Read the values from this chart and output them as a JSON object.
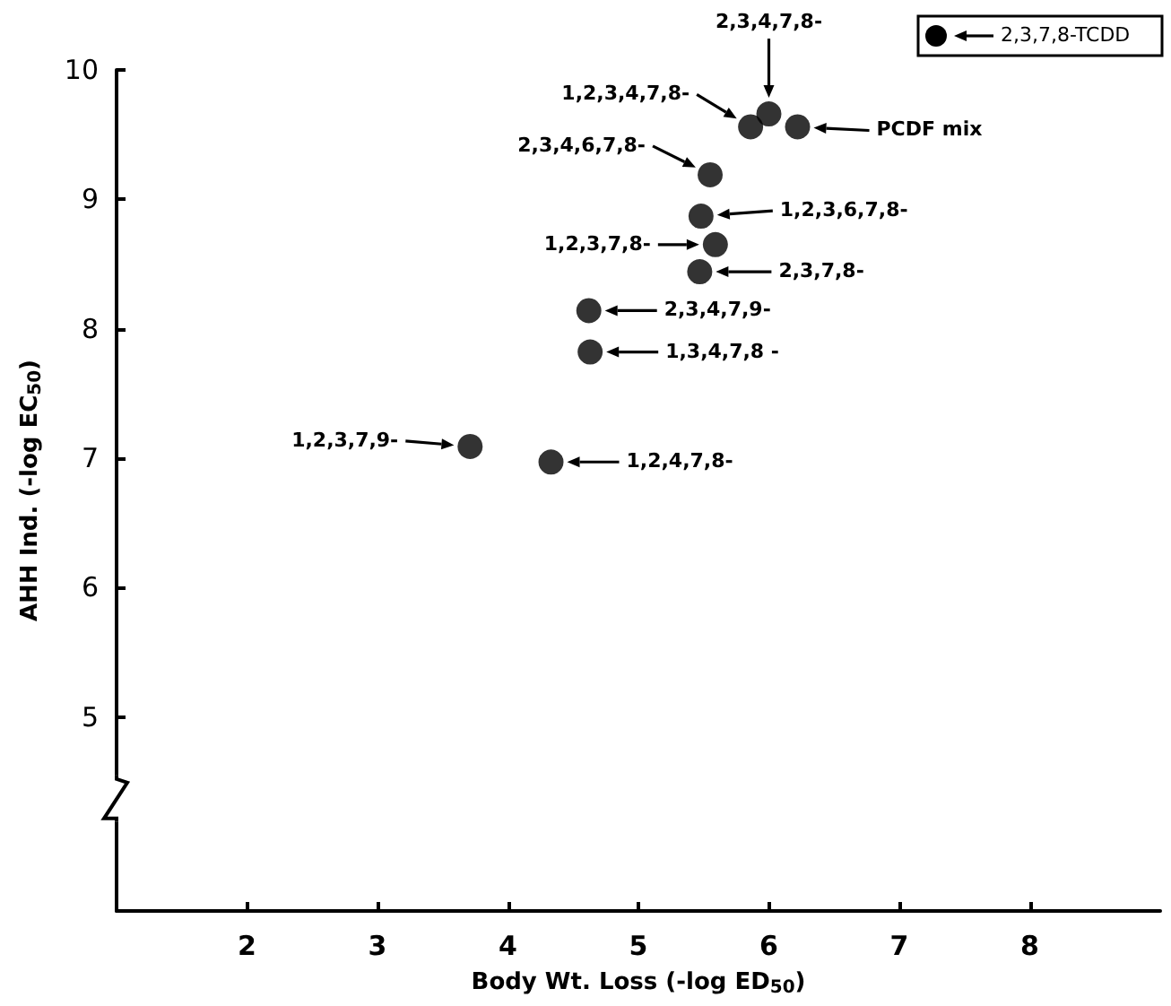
{
  "chart_data": {
    "type": "scatter",
    "xlabel": "Body Wt. Loss (-log ED$_{50}$)",
    "ylabel": "AHH Ind. (-log EC$_{50}$)",
    "x": [
      6.0,
      5.86,
      6.22,
      5.55,
      5.48,
      5.59,
      5.47,
      4.62,
      4.63,
      3.71,
      4.33
    ],
    "values": [
      9.66,
      9.56,
      9.56,
      9.19,
      8.87,
      8.65,
      8.44,
      8.14,
      7.82,
      7.09,
      6.97
    ],
    "color": "#000000",
    "marker": "circle",
    "xlim": [
      1,
      9
    ],
    "xticks": [
      2,
      3,
      4,
      5,
      6,
      7,
      8
    ],
    "ylim": [
      3.5,
      10
    ],
    "yticks": [
      5,
      6,
      7,
      8,
      9,
      10
    ],
    "grid": false,
    "annotations": [
      "2,3,4,7,8-",
      "1,2,3,4,7,8-",
      "PCDF mix",
      "2,3,4,6,7,8-",
      "1,2,3,6,7,8-",
      "1,2,3,7,8-",
      "2,3,7,8-",
      "2,3,4,7,9-",
      "1,3,4,7,8 -",
      "1,2,3,7,9-",
      "1,2,4,7,8-",
      "2,3,7,8-TCDD"
    ]
  }
}
